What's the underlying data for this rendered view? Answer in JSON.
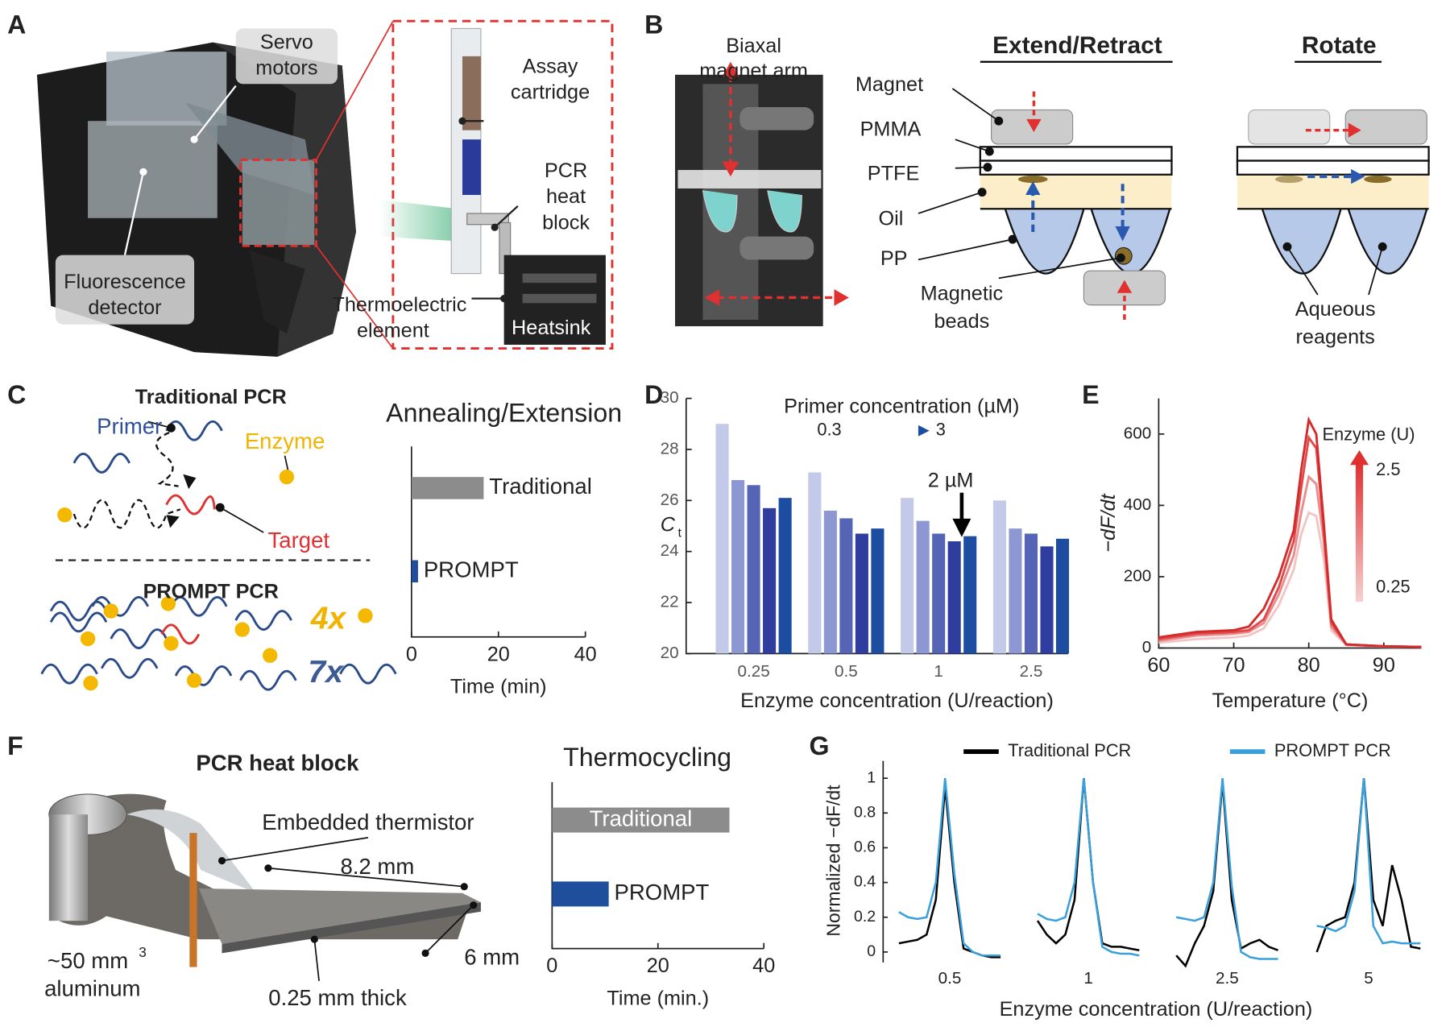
{
  "panel_labels": [
    "A",
    "B",
    "C",
    "D",
    "E",
    "F",
    "G"
  ],
  "panel_a": {
    "servo": [
      "Servo",
      "motors"
    ],
    "detector": [
      "Fluorescence",
      "detector"
    ],
    "cartridge": [
      "Assay",
      "cartridge"
    ],
    "heat_block": [
      "PCR",
      "heat",
      "block"
    ],
    "thermoelectric": [
      "Thermoelectric",
      "element"
    ],
    "heatsink": "Heatsink"
  },
  "panel_b": {
    "arm": [
      "Biaxal",
      "magnet arm"
    ],
    "extend_title": "Extend/Retract",
    "rotate_title": "Rotate",
    "magnet": "Magnet",
    "pmma": "PMMA",
    "ptfe": "PTFE",
    "oil": "Oil",
    "pp": "PP",
    "beads": [
      "Magnetic",
      "beads"
    ],
    "reagents": [
      "Aqueous",
      "reagents"
    ]
  },
  "panel_c": {
    "traditional_title": "Traditional PCR",
    "primer": "Primer",
    "enzyme": "Enzyme",
    "target": "Target",
    "prompt_title": "PROMPT PCR",
    "enzyme_fold": "4x",
    "primer_fold": "7x"
  },
  "panel_f": {
    "title": "PCR heat block",
    "thermistor": "Embedded thermistor",
    "length": "8.2 mm",
    "width": "6 mm",
    "volume": "~50 mm",
    "volume_sup": "3",
    "material": "aluminum",
    "thickness": "0.25 mm thick"
  },
  "chart_data": [
    {
      "type": "hbar",
      "title": "Annealing/Extension",
      "categories": [
        "Traditional",
        "PROMPT"
      ],
      "values": [
        16.6,
        1.5
      ],
      "colors": [
        "#8c8c8c",
        "#1f4e9c"
      ],
      "xlim": [
        0,
        40
      ],
      "xticks": [
        0,
        20,
        40
      ],
      "x_label": "Time (min)"
    },
    {
      "type": "grouped_bar",
      "categories": [
        "0.25",
        "0.5",
        "1",
        "2.5"
      ],
      "series": [
        {
          "name": "0.3",
          "color": "#c3c9e9",
          "values": [
            29.0,
            27.1,
            26.1,
            26.0
          ]
        },
        {
          "color": "#8d98d2",
          "values": [
            26.8,
            25.6,
            25.2,
            24.9
          ]
        },
        {
          "color": "#5664b6",
          "values": [
            26.6,
            25.3,
            24.7,
            24.7
          ]
        },
        {
          "color": "#2e3d9e",
          "values": [
            25.7,
            24.7,
            24.4,
            24.2
          ]
        },
        {
          "name": "3",
          "color": "#1c4da0",
          "values": [
            26.1,
            24.9,
            24.6,
            24.5
          ]
        }
      ],
      "ylim": [
        20,
        30
      ],
      "yticks": [
        20,
        22,
        24,
        26,
        28,
        30
      ],
      "x_label": "Enzyme concentration (U/reaction)",
      "y_label": "C",
      "y_label_sub": "t",
      "legend_title": "Primer concentration (µM)",
      "annotation": "2 µM"
    },
    {
      "type": "line",
      "x": [
        60,
        65,
        70,
        72,
        74,
        76,
        78,
        79,
        80,
        81,
        82,
        83,
        85,
        90,
        95
      ],
      "series": [
        {
          "name": "0.25",
          "color": "#f2c4c4",
          "values": [
            15,
            25,
            30,
            35,
            55,
            120,
            220,
            320,
            380,
            370,
            250,
            50,
            8,
            4,
            3
          ]
        },
        {
          "color": "#eb8c8c",
          "values": [
            20,
            35,
            40,
            45,
            70,
            150,
            260,
            380,
            480,
            460,
            300,
            60,
            10,
            5,
            3
          ]
        },
        {
          "color": "#e0484a",
          "values": [
            25,
            40,
            45,
            50,
            80,
            170,
            300,
            450,
            590,
            560,
            330,
            70,
            10,
            5,
            3
          ]
        },
        {
          "name": "2.5",
          "color": "#d42a2a",
          "values": [
            30,
            45,
            50,
            60,
            110,
            200,
            330,
            500,
            640,
            600,
            350,
            80,
            10,
            5,
            3
          ]
        }
      ],
      "xlim": [
        60,
        95
      ],
      "xticks": [
        60,
        70,
        80,
        90
      ],
      "ylim": [
        0,
        700
      ],
      "yticks": [
        0,
        200,
        400,
        600
      ],
      "x_label": "Temperature (°C)",
      "y_label": "−dF/dt",
      "legend_title": "Enzyme (U)"
    },
    {
      "type": "hbar",
      "title": "Thermocycling",
      "categories": [
        "Traditional",
        "PROMPT"
      ],
      "values": [
        33.5,
        10.7
      ],
      "colors": [
        "#8c8c8c",
        "#1f4e9c"
      ],
      "xlim": [
        0,
        40
      ],
      "xticks": [
        0,
        20,
        40
      ],
      "x_label": "Time (min.)"
    },
    {
      "type": "multi_line",
      "legend": [
        {
          "name": "Traditional PCR",
          "color": "#000000"
        },
        {
          "name": "PROMPT PCR",
          "color": "#3aa0dc"
        }
      ],
      "ylim": [
        -0.06,
        1.1
      ],
      "yticks": [
        0,
        0.2,
        0.4,
        0.6,
        0.8,
        1
      ],
      "x_label": "Enzyme concentration (U/reaction)",
      "y_label": "Normalized −dF/dt",
      "subplots": [
        {
          "category": "0.5",
          "series": [
            {
              "values": [
                0.05,
                0.06,
                0.07,
                0.1,
                0.3,
                0.95,
                0.4,
                0.02,
                0,
                -0.02,
                -0.03,
                -0.03
              ]
            },
            {
              "values": [
                0.23,
                0.2,
                0.19,
                0.2,
                0.4,
                1,
                0.45,
                0.05,
                0,
                -0.02,
                -0.02,
                -0.02
              ]
            }
          ]
        },
        {
          "category": "1",
          "series": [
            {
              "values": [
                0.18,
                0.1,
                0.05,
                0.1,
                0.3,
                1,
                0.4,
                0.05,
                0.03,
                0.03,
                0.02,
                0.01
              ]
            },
            {
              "values": [
                0.22,
                0.19,
                0.18,
                0.2,
                0.4,
                1,
                0.4,
                0.03,
                0,
                -0.01,
                -0.01,
                -0.02
              ]
            }
          ]
        },
        {
          "category": "2.5",
          "series": [
            {
              "values": [
                -0.02,
                -0.08,
                0.05,
                0.15,
                0.35,
                0.98,
                0.3,
                0.02,
                0.05,
                0.07,
                0.03,
                0.01
              ]
            },
            {
              "values": [
                0.2,
                0.19,
                0.18,
                0.2,
                0.4,
                1,
                0.38,
                0,
                -0.03,
                -0.04,
                -0.04,
                -0.04
              ]
            }
          ]
        },
        {
          "category": "5",
          "series": [
            {
              "values": [
                0,
                0.15,
                0.18,
                0.2,
                0.4,
                1,
                0.3,
                0.15,
                0.5,
                0.3,
                0.03,
                0.02
              ]
            },
            {
              "values": [
                0.15,
                0.14,
                0.12,
                0.15,
                0.35,
                1,
                0.15,
                0.05,
                0.06,
                0.05,
                0.05,
                0.05
              ]
            }
          ]
        }
      ]
    }
  ]
}
